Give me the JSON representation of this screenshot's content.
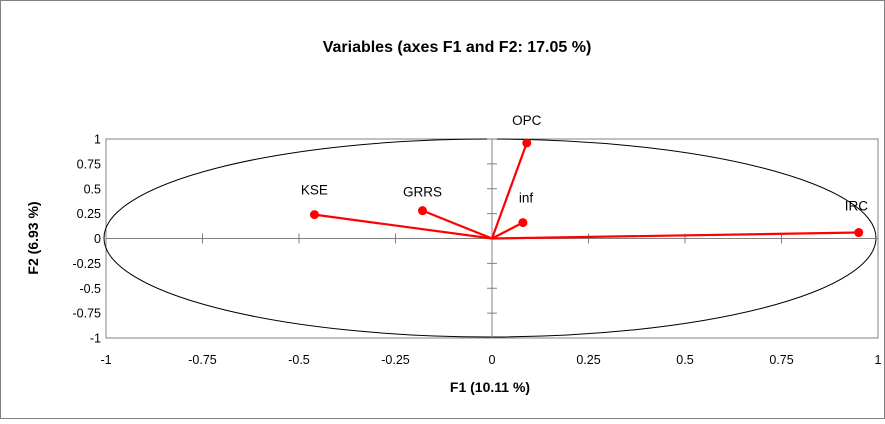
{
  "chart_data": {
    "type": "scatter",
    "title": "Variables (axes F1 and F2: 17.05 %)",
    "xlabel": "F1 (10.11 %)",
    "ylabel": "F2 (6.93 %)",
    "xlim": [
      -1,
      1
    ],
    "ylim": [
      -1,
      1
    ],
    "x_ticks": [
      "-1",
      "-0.75",
      "-0.5",
      "-0.25",
      "0",
      "0.25",
      "0.5",
      "0.75",
      "1"
    ],
    "y_ticks": [
      "1",
      "0.75",
      "0.5",
      "0.25",
      "0",
      "-0.25",
      "-0.5",
      "-0.75",
      "-1"
    ],
    "grid": false,
    "correlation_circle": true,
    "colors": {
      "vector": "#ff0000",
      "axes": "#808080",
      "frame": "#808080",
      "circle": "#000000"
    },
    "points": [
      {
        "label": "OPC",
        "x": 0.09,
        "y": 0.96
      },
      {
        "label": "GRRS",
        "x": -0.18,
        "y": 0.28
      },
      {
        "label": "KSE",
        "x": -0.46,
        "y": 0.24
      },
      {
        "label": "inf",
        "x": 0.08,
        "y": 0.16
      },
      {
        "label": "IRC",
        "x": 0.95,
        "y": 0.06
      }
    ]
  }
}
